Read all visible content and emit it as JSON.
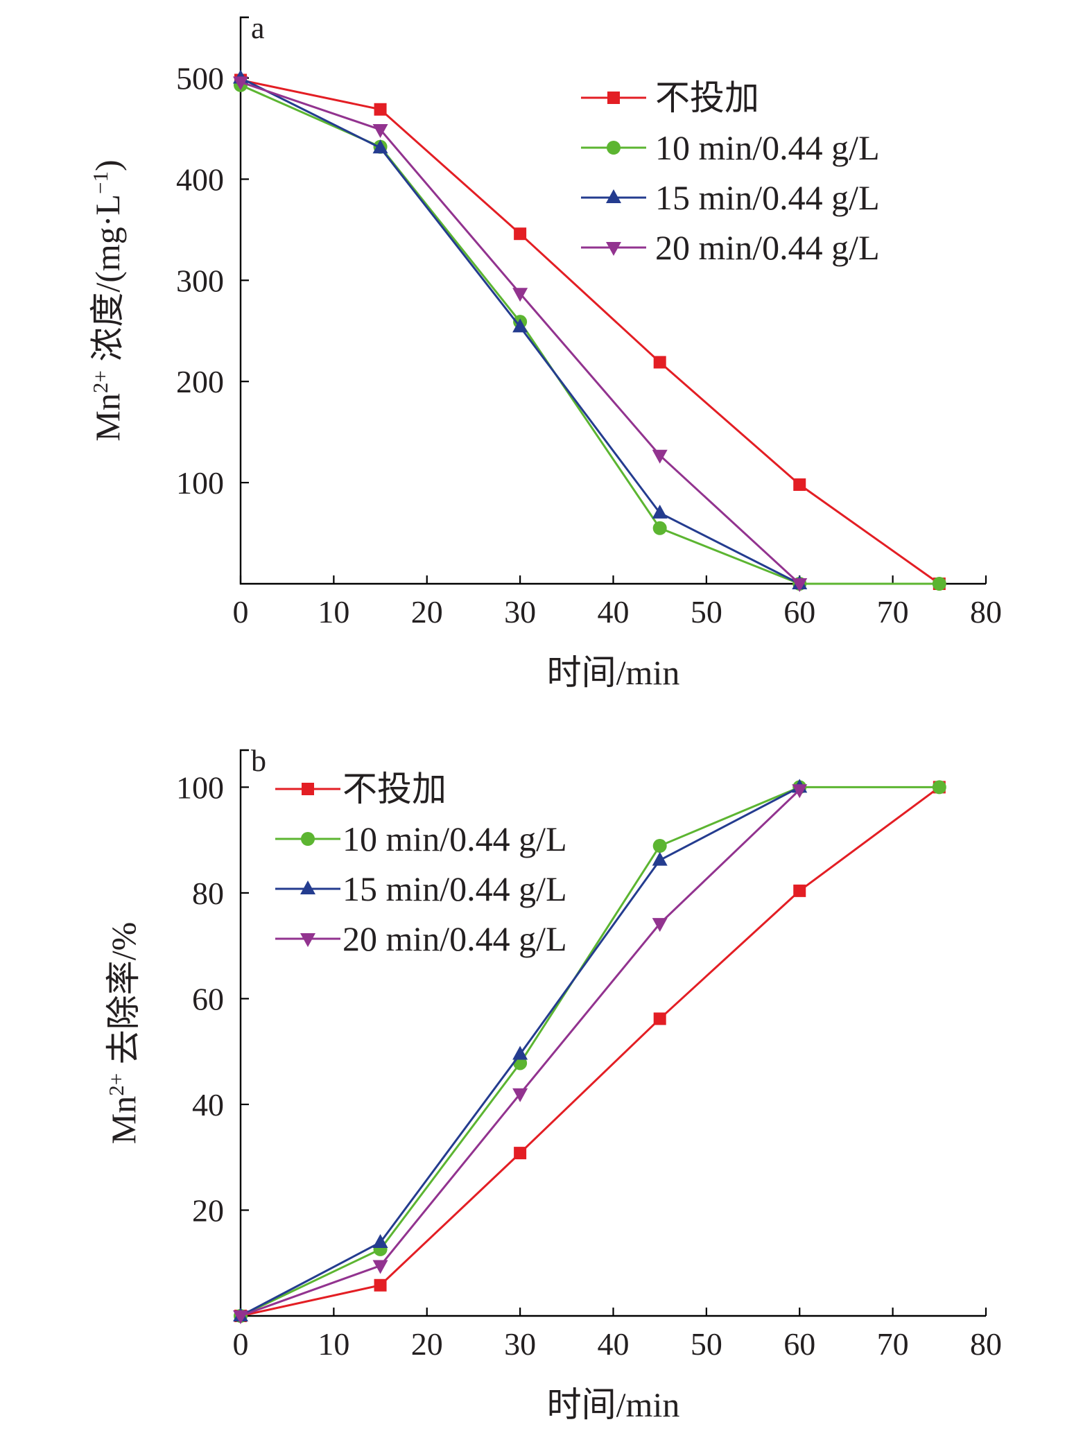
{
  "chart_data": [
    {
      "type": "line",
      "panel_label": "a",
      "xlabel": "时间/min",
      "ylabel_main": "Mn",
      "ylabel_sup": "2+",
      "ylabel_rest": " 浓度/(mg·L",
      "ylabel_sup2": "−1",
      "ylabel_end": ")",
      "xlim": [
        0,
        80
      ],
      "ylim": [
        0,
        560
      ],
      "xticks": [
        "0",
        "10",
        "20",
        "30",
        "40",
        "50",
        "60",
        "70",
        "80"
      ],
      "xtick_values": [
        0,
        10,
        20,
        30,
        40,
        50,
        60,
        70,
        80
      ],
      "yticks": [
        "100",
        "200",
        "300",
        "400",
        "500"
      ],
      "ytick_values": [
        100,
        200,
        300,
        400,
        500
      ],
      "grid": false,
      "legend_position": "top-right",
      "series": [
        {
          "name": "不投加",
          "color": "#e31e24",
          "marker": "square",
          "x": [
            0,
            15,
            30,
            45,
            60,
            75
          ],
          "y": [
            498,
            469,
            346,
            219,
            98,
            0
          ]
        },
        {
          "name": "10 min/0.44 g/L",
          "color": "#5cb531",
          "marker": "circle",
          "x": [
            0,
            15,
            30,
            45,
            60,
            75
          ],
          "y": [
            493,
            432,
            259,
            55,
            0,
            0
          ]
        },
        {
          "name": "15 min/0.44 g/L",
          "color": "#243c8f",
          "marker": "triangle-up",
          "x": [
            0,
            15,
            30,
            45,
            60
          ],
          "y": [
            500,
            431,
            254,
            70,
            0
          ]
        },
        {
          "name": "20 min/0.44 g/L",
          "color": "#92338f",
          "marker": "triangle-down",
          "x": [
            0,
            15,
            30,
            45,
            60
          ],
          "y": [
            496,
            449,
            287,
            127,
            0
          ]
        }
      ]
    },
    {
      "type": "line",
      "panel_label": "b",
      "xlabel": "时间/min",
      "ylabel_main": "Mn",
      "ylabel_sup": "2+",
      "ylabel_rest": " 去除率/%",
      "ylabel_sup2": "",
      "ylabel_end": "",
      "xlim": [
        0,
        80
      ],
      "ylim": [
        0,
        107
      ],
      "xticks": [
        "0",
        "10",
        "20",
        "30",
        "40",
        "50",
        "60",
        "70",
        "80"
      ],
      "xtick_values": [
        0,
        10,
        20,
        30,
        40,
        50,
        60,
        70,
        80
      ],
      "yticks": [
        "20",
        "40",
        "60",
        "80",
        "100"
      ],
      "ytick_values": [
        20,
        40,
        60,
        80,
        100
      ],
      "grid": false,
      "legend_position": "top-left",
      "series": [
        {
          "name": "不投加",
          "color": "#e31e24",
          "marker": "square",
          "x": [
            0,
            15,
            30,
            45,
            60,
            75
          ],
          "y": [
            0,
            5.8,
            30.8,
            56.2,
            80.4,
            100
          ]
        },
        {
          "name": "10 min/0.44 g/L",
          "color": "#5cb531",
          "marker": "circle",
          "x": [
            0,
            15,
            30,
            45,
            60,
            75
          ],
          "y": [
            0,
            12.6,
            47.8,
            88.9,
            100,
            100
          ]
        },
        {
          "name": "15 min/0.44 g/L",
          "color": "#243c8f",
          "marker": "triangle-up",
          "x": [
            0,
            15,
            30,
            45,
            60
          ],
          "y": [
            0,
            13.9,
            49.5,
            86.2,
            100
          ]
        },
        {
          "name": "20 min/0.44 g/L",
          "color": "#92338f",
          "marker": "triangle-down",
          "x": [
            0,
            15,
            30,
            45,
            60
          ],
          "y": [
            0,
            9.5,
            42,
            74.2,
            99.5
          ]
        }
      ]
    }
  ]
}
